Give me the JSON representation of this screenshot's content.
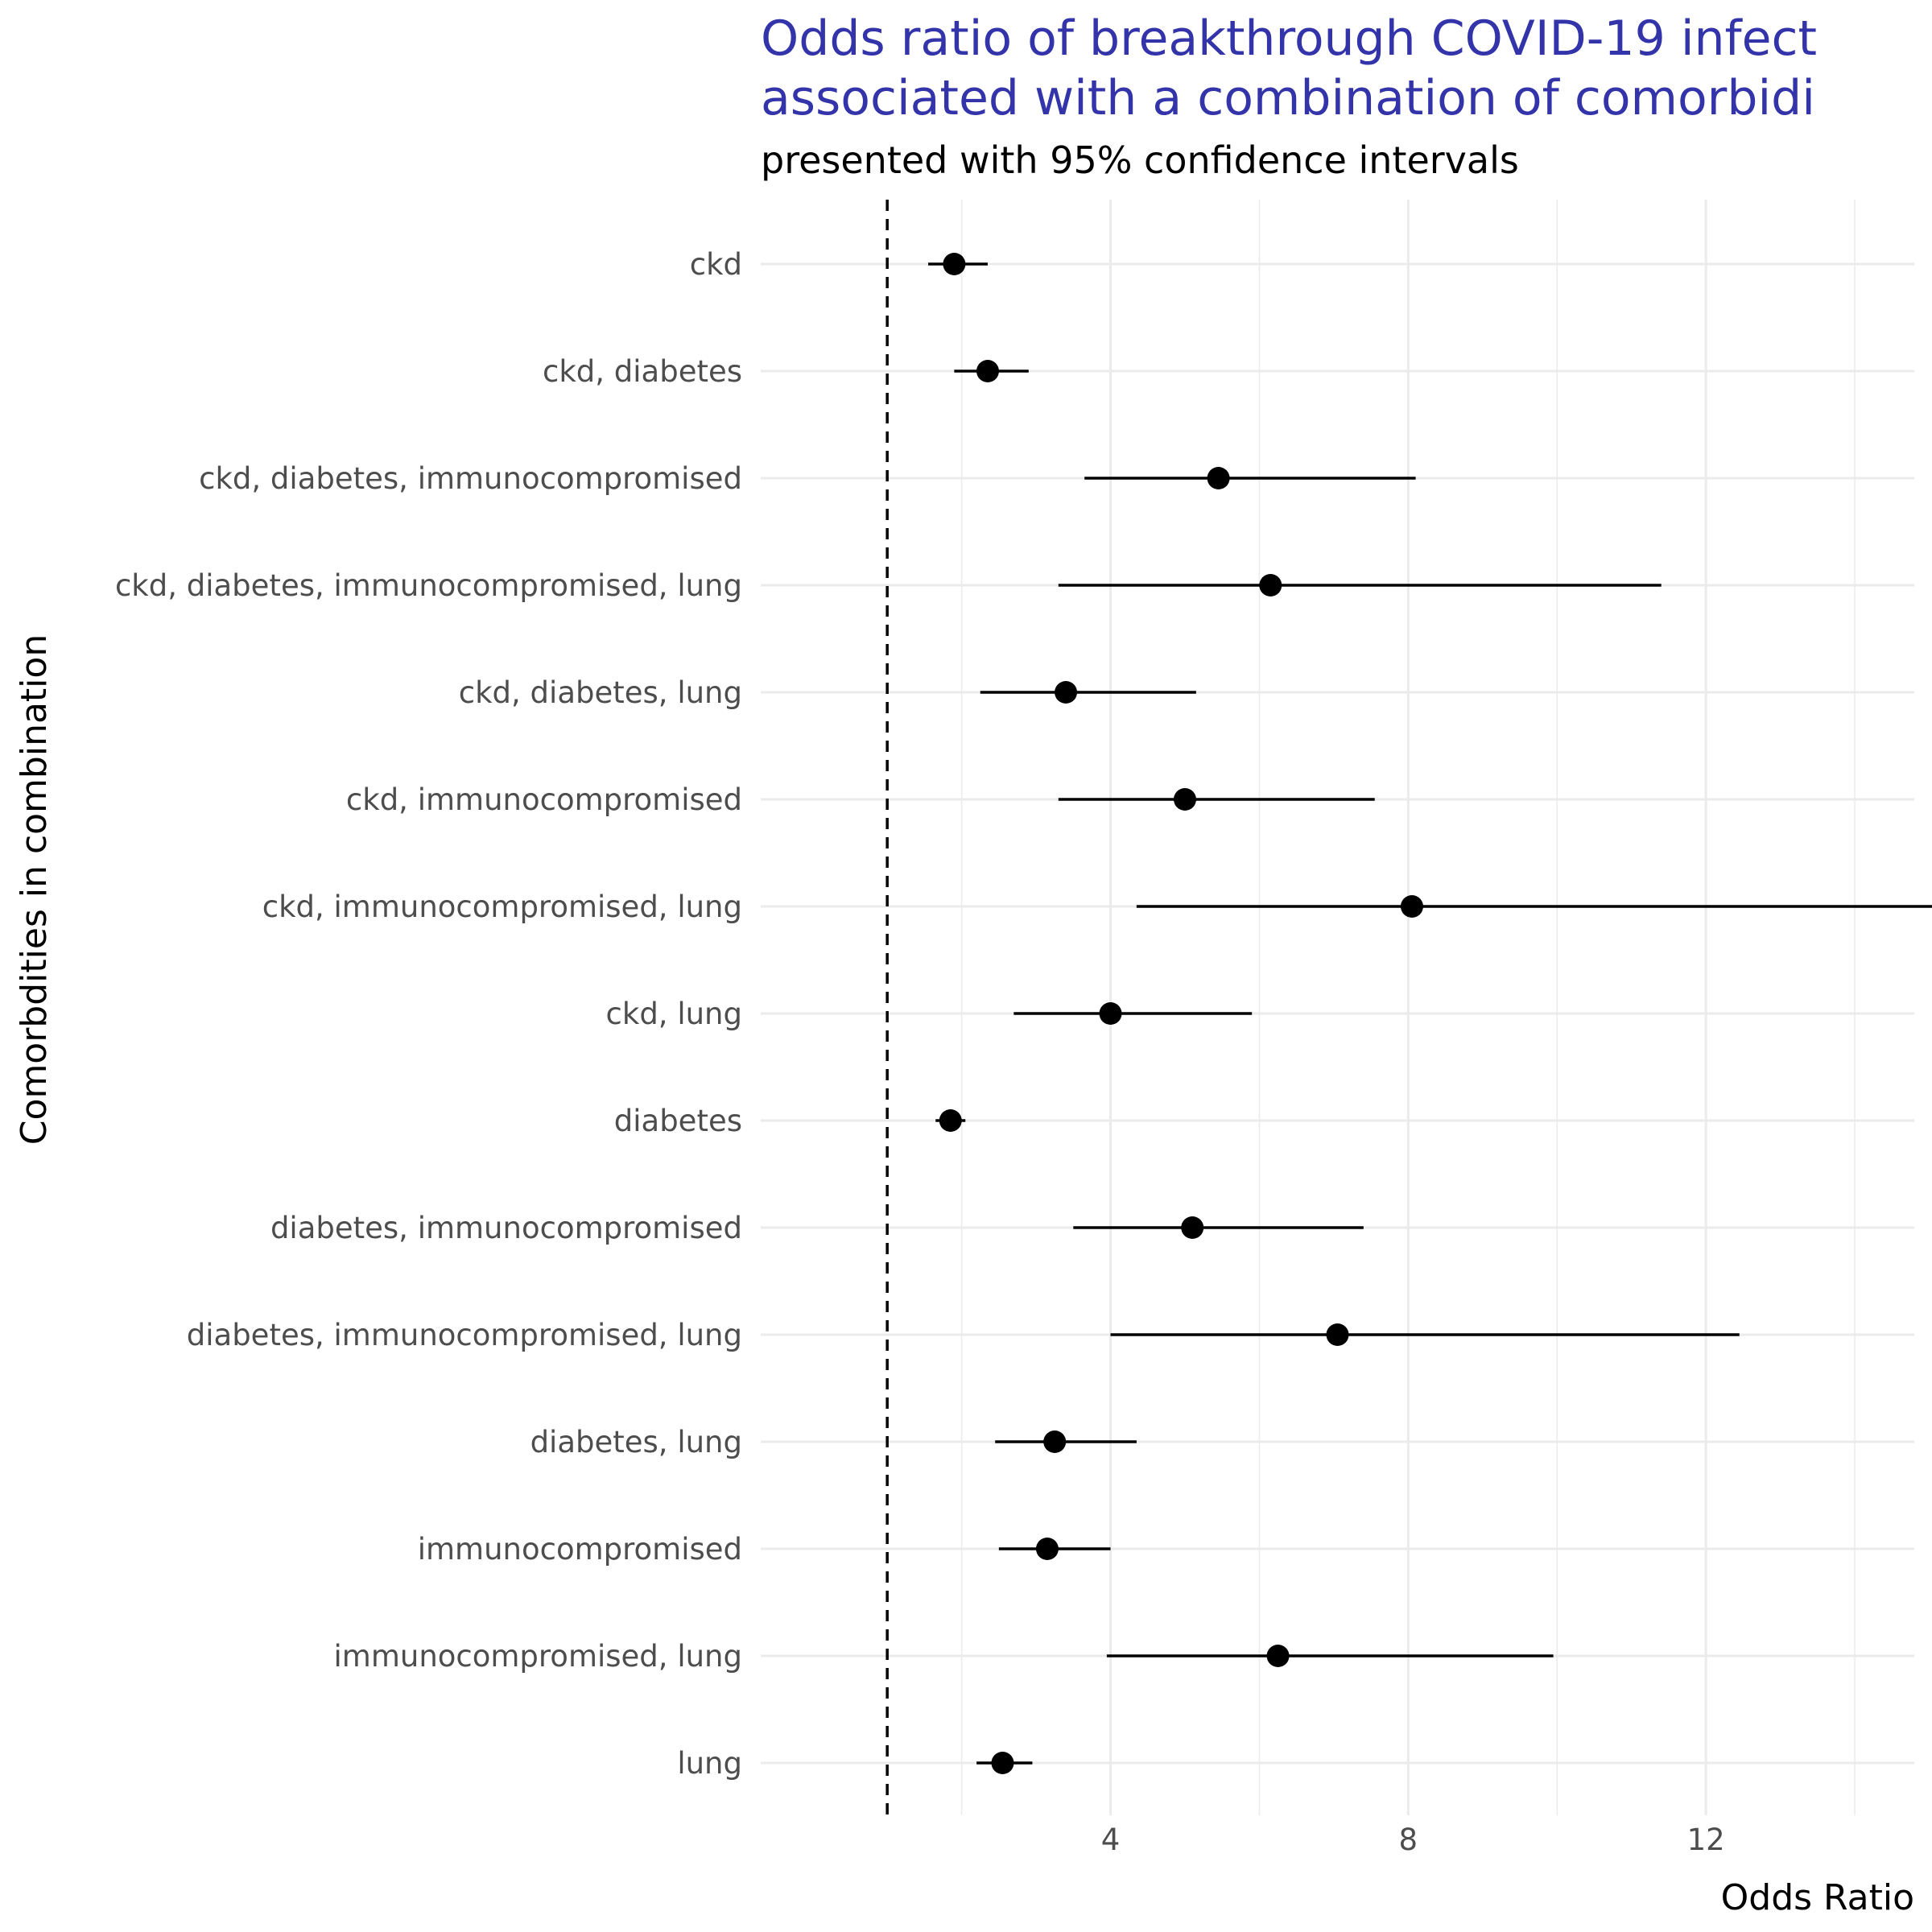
{
  "chart_data": {
    "type": "scatter",
    "title_lines": [
      "Odds ratio of breakthrough COVID-19 infect",
      "associated with a combination of comorbidi"
    ],
    "subtitle": "presented with 95% confidence intervals",
    "xlabel": "Odds Ratio",
    "ylabel": "Comorbdities in combination",
    "xlim": [
      -0.7,
      14.8
    ],
    "x_major_ticks": [
      4,
      8,
      12
    ],
    "x_tick_labels": [
      "4",
      "8",
      "12"
    ],
    "x_minor_ticks": [
      2,
      6,
      10,
      14
    ],
    "reference_line": 1,
    "grid": true,
    "series": [
      {
        "categories": [
          "ckd",
          "ckd, diabetes",
          "ckd, diabetes, immunocompromised",
          "ckd, diabetes, immunocompromised, lung",
          "ckd, diabetes, lung",
          "ckd, immunocompromised",
          "ckd, immunocompromised, lung",
          "ckd, lung",
          "diabetes",
          "diabetes, immunocompromised",
          "diabetes, immunocompromised, lung",
          "diabetes, lung",
          "immunocompromised",
          "immunocompromised, lung",
          "lung"
        ],
        "odds_ratio": [
          1.9,
          2.35,
          5.45,
          6.15,
          3.4,
          5.0,
          8.05,
          4.0,
          1.85,
          5.1,
          7.05,
          3.25,
          3.15,
          6.25,
          2.55
        ],
        "ci_lower": [
          1.55,
          1.9,
          3.65,
          3.3,
          2.25,
          3.3,
          4.35,
          2.7,
          1.65,
          3.5,
          4.0,
          2.45,
          2.5,
          3.95,
          2.2
        ],
        "ci_upper": [
          2.35,
          2.9,
          8.1,
          11.4,
          5.15,
          7.55,
          15.1,
          5.9,
          2.05,
          7.4,
          12.45,
          4.35,
          4.0,
          9.95,
          2.95
        ]
      }
    ]
  }
}
